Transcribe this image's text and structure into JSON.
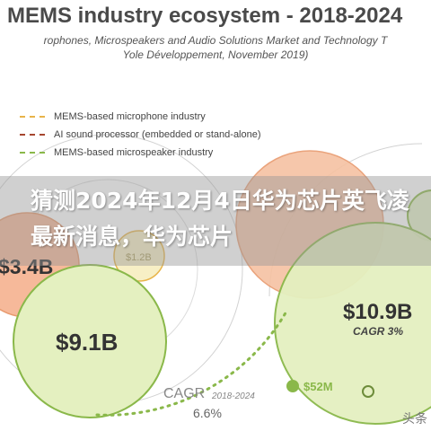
{
  "header": {
    "title": "MEMS industry ecosystem - 2018-2024",
    "subtitle_lines": [
      "rophones, Microspeakers and Audio Solutions Market and Technology T",
      "Yole Développement, November 2019)"
    ]
  },
  "legend": [
    {
      "label": "MEMS-based microphone industry",
      "color": "#e8b44a"
    },
    {
      "label": "AI sound processor (embedded or stand-alone)",
      "color": "#a6472f"
    },
    {
      "label": "MEMS-based microspeaker industry",
      "color": "#8ab84a"
    }
  ],
  "bubbles": {
    "left_top_value": "$3.4B",
    "left_top_small": "$1.2B",
    "left_main_value": "$9.1B",
    "right_value": "$10.9B",
    "right_cagr": "CAGR 3%",
    "bottom_small": "$52M",
    "bottom_cagr_label": "CAGR",
    "bottom_cagr_years": "2018-2024",
    "bottom_cagr_value": "6.6%"
  },
  "overlay": {
    "headline": "猜测2024年12月4日华为芯片英飞凌最新消息，华为芯片"
  },
  "watermark": "头条"
}
